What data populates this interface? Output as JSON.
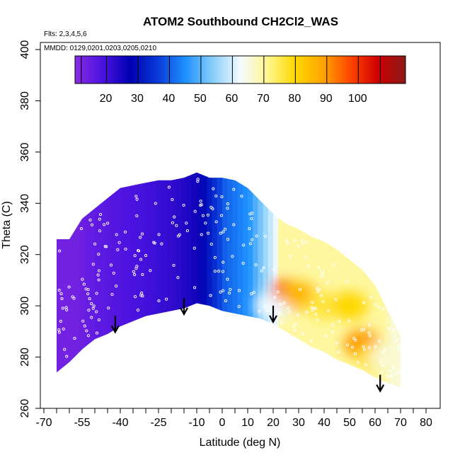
{
  "chart_data": {
    "type": "heatmap",
    "title": "ATOM2 Southbound CH2Cl2_WAS",
    "flights_note": "Flts: 2,3,4,5,6",
    "dates_note": "MMDD: 0129,0201,0203,0205,0210",
    "xlabel": "Latitude (deg N)",
    "ylabel": "Theta (C)",
    "xlim": [
      -70,
      80
    ],
    "ylim": [
      260,
      400
    ],
    "x_tick_labels": [
      "-70",
      "-55",
      "-40",
      "-25",
      "-10",
      "0",
      "10",
      "20",
      "30",
      "40",
      "50",
      "60",
      "70",
      "80"
    ],
    "x_tick_values": [
      -70,
      -55,
      -40,
      -25,
      -10,
      0,
      10,
      20,
      30,
      40,
      50,
      60,
      70,
      80
    ],
    "x_minor_ticks": [
      -65,
      -60,
      -50,
      -45,
      -35,
      -30,
      -20,
      -15,
      -5,
      5,
      15,
      25,
      35,
      45,
      55,
      65,
      75
    ],
    "y_tick_labels": [
      "260",
      "280",
      "300",
      "320",
      "340",
      "360",
      "380",
      "400"
    ],
    "y_tick_values": [
      260,
      280,
      300,
      320,
      340,
      360,
      380,
      400
    ],
    "colorbar": {
      "tick_labels": [
        "20",
        "30",
        "40",
        "50",
        "60",
        "70",
        "80",
        "90",
        "100"
      ],
      "tick_values": [
        20,
        30,
        40,
        50,
        60,
        70,
        80,
        90,
        100
      ],
      "range": [
        10,
        115
      ],
      "colors": [
        "#8a2be2",
        "#4b12e0",
        "#0000b0",
        "#0a3ad8",
        "#1e90ff",
        "#87cefa",
        "#f5fbff",
        "#fff68f",
        "#ffd700",
        "#ffa500",
        "#ff4500",
        "#cc0000",
        "#8b1a1a"
      ]
    },
    "domain_envelope": {
      "latitude": [
        -65,
        -60,
        -55,
        -50,
        -45,
        -40,
        -35,
        -30,
        -25,
        -20,
        -15,
        -10,
        -5,
        0,
        5,
        10,
        15,
        20,
        25,
        30,
        35,
        40,
        45,
        50,
        55,
        60,
        65,
        70
      ],
      "theta_min": [
        274,
        278,
        283,
        287,
        289,
        292,
        294,
        296,
        297,
        298,
        299,
        301,
        300,
        298,
        297,
        296,
        295,
        293,
        290,
        287,
        284,
        282,
        279,
        277,
        275,
        272,
        270,
        268
      ],
      "theta_max": [
        326,
        326,
        334,
        338,
        342,
        346,
        347,
        348,
        349,
        349,
        350,
        352,
        350,
        350,
        349,
        346,
        341,
        336,
        332,
        330,
        327,
        325,
        322,
        318,
        314,
        308,
        298,
        288
      ]
    },
    "mixing_ratio_field": [
      {
        "latitude": -60,
        "theta": 300,
        "value": 13
      },
      {
        "latitude": -50,
        "theta": 320,
        "value": 16
      },
      {
        "latitude": -40,
        "theta": 310,
        "value": 18
      },
      {
        "latitude": -30,
        "theta": 330,
        "value": 20
      },
      {
        "latitude": -20,
        "theta": 320,
        "value": 22
      },
      {
        "latitude": -10,
        "theta": 330,
        "value": 26
      },
      {
        "latitude": 0,
        "theta": 320,
        "value": 40
      },
      {
        "latitude": 10,
        "theta": 330,
        "value": 46
      },
      {
        "latitude": 20,
        "theta": 300,
        "value": 62
      },
      {
        "latitude": 25,
        "theta": 306,
        "value": 100
      },
      {
        "latitude": 30,
        "theta": 304,
        "value": 86
      },
      {
        "latitude": 40,
        "theta": 300,
        "value": 76
      },
      {
        "latitude": 50,
        "theta": 300,
        "value": 80
      },
      {
        "latitude": 55,
        "theta": 285,
        "value": 90
      },
      {
        "latitude": 60,
        "theta": 280,
        "value": 78
      },
      {
        "latitude": 65,
        "theta": 280,
        "value": 66
      }
    ],
    "arrow_markers": [
      {
        "latitude": -42,
        "theta": 290
      },
      {
        "latitude": -15,
        "theta": 297
      },
      {
        "latitude": 20,
        "theta": 294
      },
      {
        "latitude": 62,
        "theta": 267
      }
    ]
  }
}
